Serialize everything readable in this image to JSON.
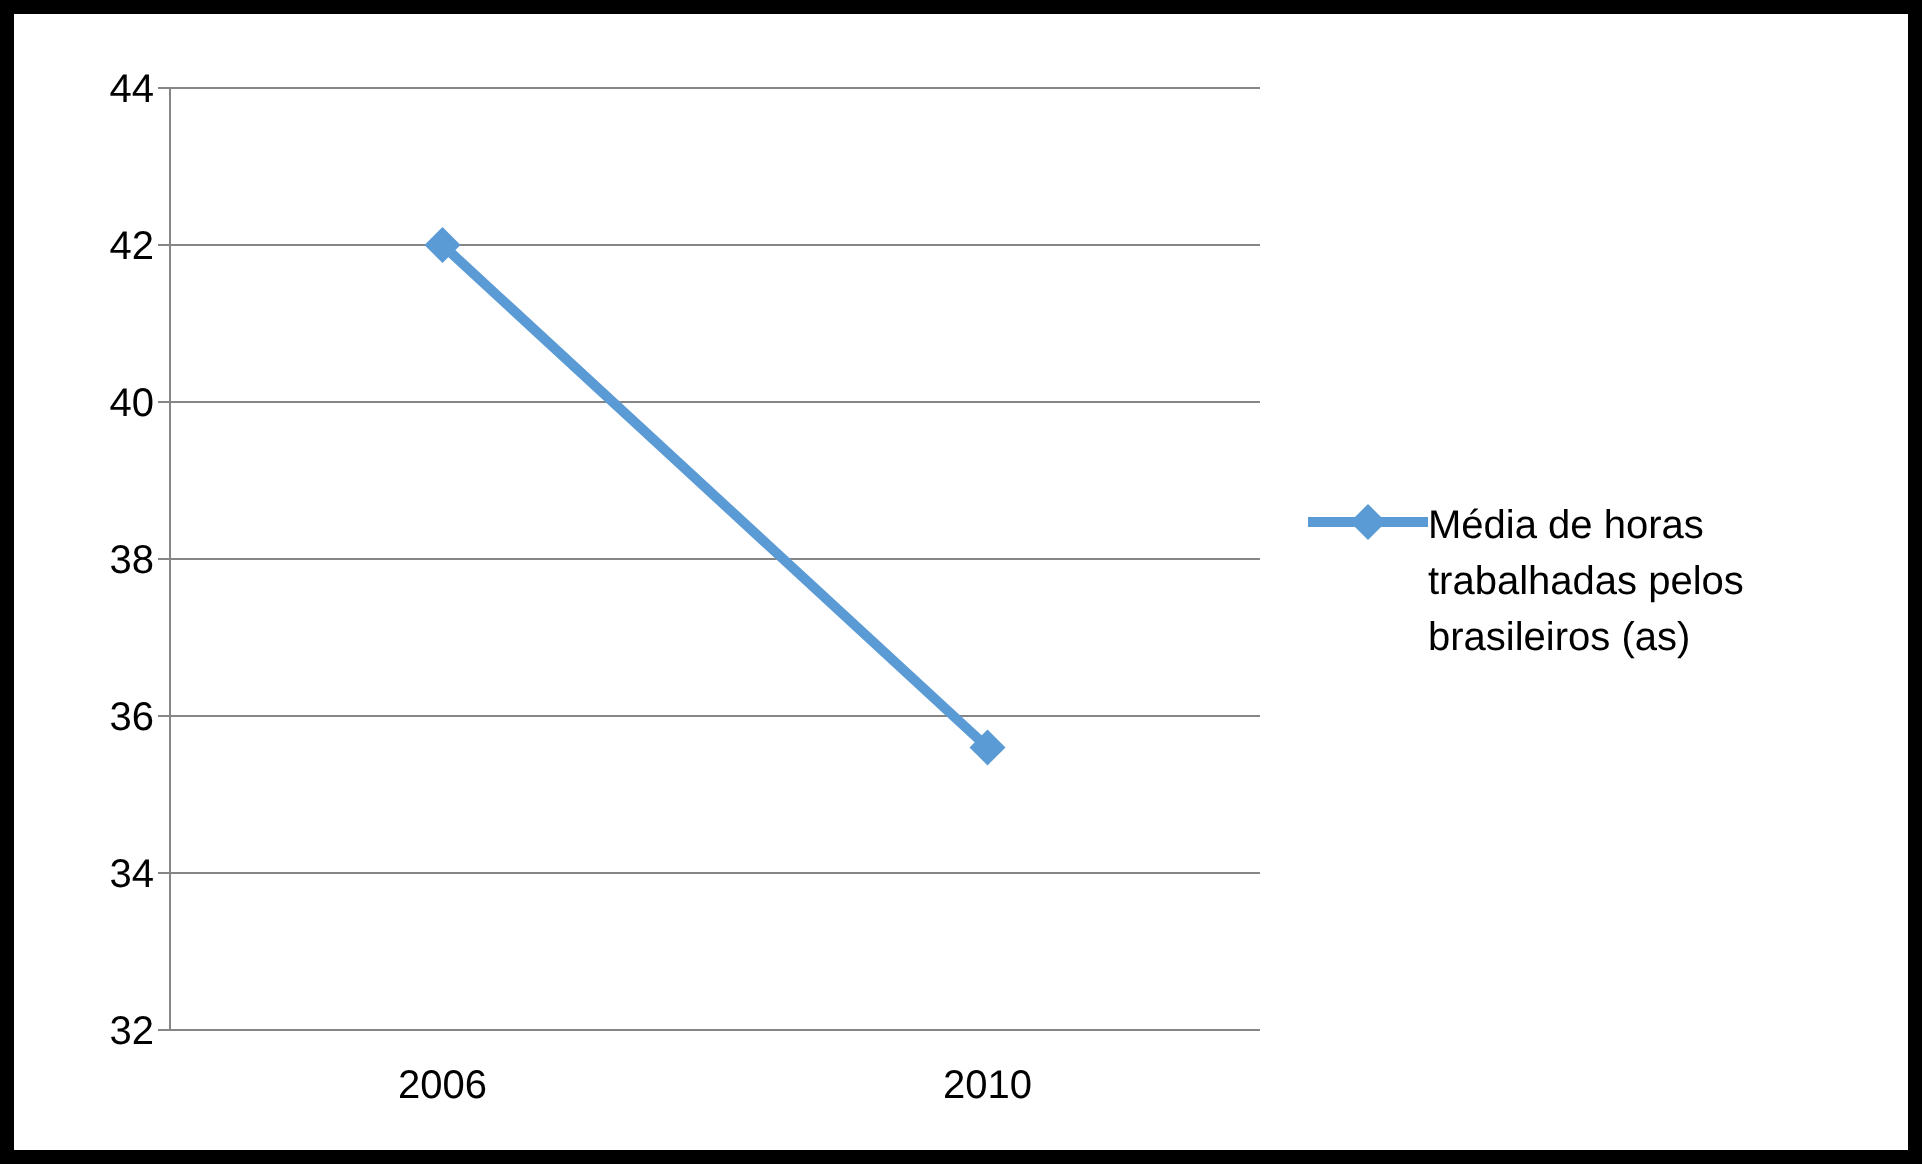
{
  "chart_data": {
    "type": "line",
    "categories": [
      "2006",
      "2010"
    ],
    "series": [
      {
        "name": "Média de horas trabalhadas pelos brasileiros (as)",
        "color": "#5b9bd5",
        "values": [
          42,
          35.6
        ]
      }
    ],
    "ylim": [
      32,
      44
    ],
    "yticks": [
      32,
      34,
      36,
      38,
      40,
      42,
      44
    ],
    "grid": "y",
    "legend": "right",
    "marker": "diamond",
    "line_style": "solid"
  }
}
